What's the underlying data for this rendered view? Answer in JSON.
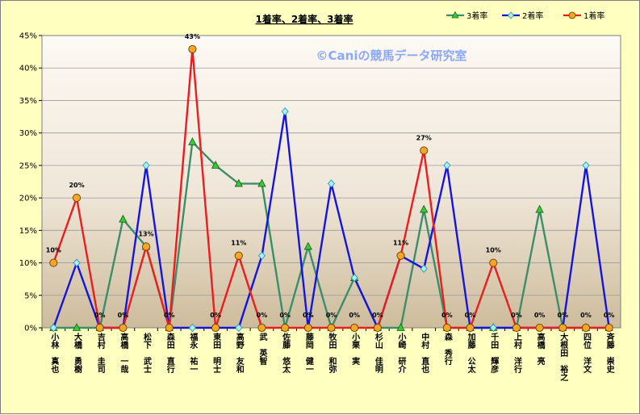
{
  "chart_data": {
    "type": "line",
    "title": "1着率、2着率、3着率",
    "watermark": "©Caniの競馬データ研究室",
    "categories": [
      "小林　真也",
      "大橋　勇樹",
      "吉村　圭司",
      "高橋　一哉",
      "松下　武士",
      "森田　直行",
      "福永　祐一",
      "東田　明士",
      "高野　友和",
      "武　英智",
      "佐藤　悠太",
      "藤岡　健一",
      "牧田　和弥",
      "小栗　実",
      "杉山　佳明",
      "小崎　研介",
      "中村　直也",
      "森　秀行",
      "加藤　公太",
      "千田　輝彦",
      "上村　洋行",
      "高橋　亮",
      "大根田　裕之",
      "四位　洋文",
      "斉藤　崇史"
    ],
    "ylim": [
      0,
      45
    ],
    "yticks": [
      0,
      5,
      10,
      15,
      20,
      25,
      30,
      35,
      40,
      45
    ],
    "ytick_suffix": "%",
    "grid": "horizontal",
    "legend_position": "top-right",
    "series": [
      {
        "name": "3着率",
        "color": "#3a8f6a",
        "marker": "triangle",
        "marker_fill": "#33cc33",
        "values": [
          0,
          0,
          0,
          16.7,
          12.5,
          0,
          28.6,
          25,
          22.2,
          22.2,
          0,
          12.5,
          0,
          7.7,
          0,
          0,
          18.2,
          0,
          0,
          0,
          0,
          18.2,
          0,
          0,
          0
        ]
      },
      {
        "name": "2着率",
        "color": "#1414e0",
        "marker": "diamond",
        "marker_fill": "#a8f0f8",
        "values": [
          0,
          10,
          0,
          0,
          25,
          0,
          0,
          0,
          0,
          11.1,
          33.3,
          0,
          22.2,
          7.7,
          0,
          11.1,
          9.1,
          25,
          0,
          0,
          0,
          0,
          0,
          25,
          0
        ]
      },
      {
        "name": "1着率",
        "color": "#ee1c1c",
        "marker": "circle",
        "marker_fill": "#f5a623",
        "values": [
          10,
          20,
          0,
          0,
          12.5,
          0,
          42.9,
          0,
          11.1,
          0,
          0,
          0,
          0,
          0,
          0,
          11.1,
          27.3,
          0,
          0,
          10,
          0,
          0,
          0,
          0,
          0
        ],
        "data_labels": [
          "10%",
          "20%",
          "0%",
          "0%",
          "13%",
          "0%",
          "43%",
          "0%",
          "11%",
          "0%",
          "0%",
          "0%",
          "0%",
          "0%",
          "0%",
          "11%",
          "27%",
          "0%",
          "0%",
          "10%",
          "0%",
          "0%",
          "0%",
          "0%",
          "0%"
        ]
      }
    ]
  }
}
